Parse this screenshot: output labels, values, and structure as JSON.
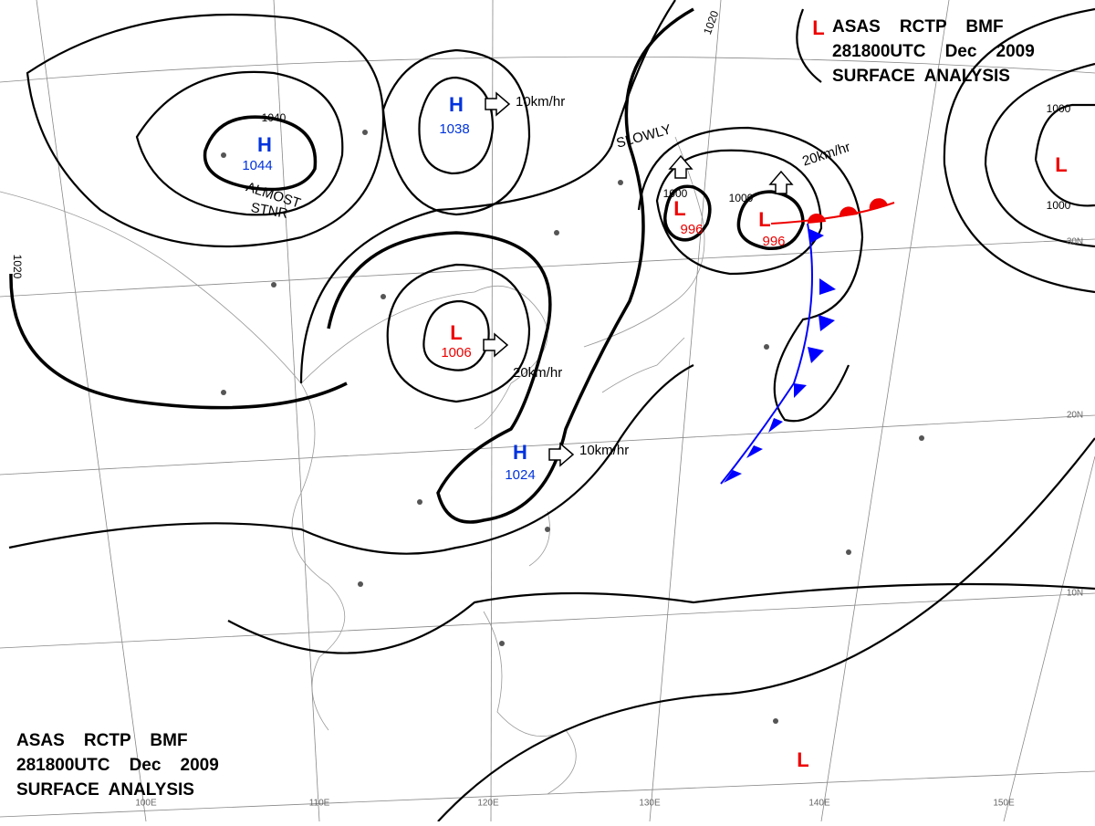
{
  "header": {
    "lines": [
      "ASAS    RCTP    BMF",
      "281800UTC    Dec    2009",
      "SURFACE  ANALYSIS"
    ]
  },
  "pressure_centers": [
    {
      "symbol": "H",
      "value": 1044
    },
    {
      "symbol": "H",
      "value": 1038
    },
    {
      "symbol": "L",
      "value": 1006
    },
    {
      "symbol": "H",
      "value": 1024
    },
    {
      "symbol": "L",
      "value": 996
    },
    {
      "symbol": "L",
      "value": 996
    },
    {
      "symbol": "L"
    },
    {
      "symbol": "L"
    },
    {
      "symbol": "L"
    }
  ],
  "motions": [
    "10km/hr",
    "20km/hr",
    "10km/hr",
    "20km/hr",
    "SLOWLY",
    "ALMOST",
    "STNR"
  ],
  "isobar_labels": [
    1040,
    1020,
    1020,
    1000,
    1000,
    1000,
    1000
  ],
  "longitudes": [
    "100E",
    "110E",
    "120E",
    "130E",
    "140E",
    "150E"
  ],
  "latitudes": [
    "30N",
    "20N",
    "10N"
  ]
}
